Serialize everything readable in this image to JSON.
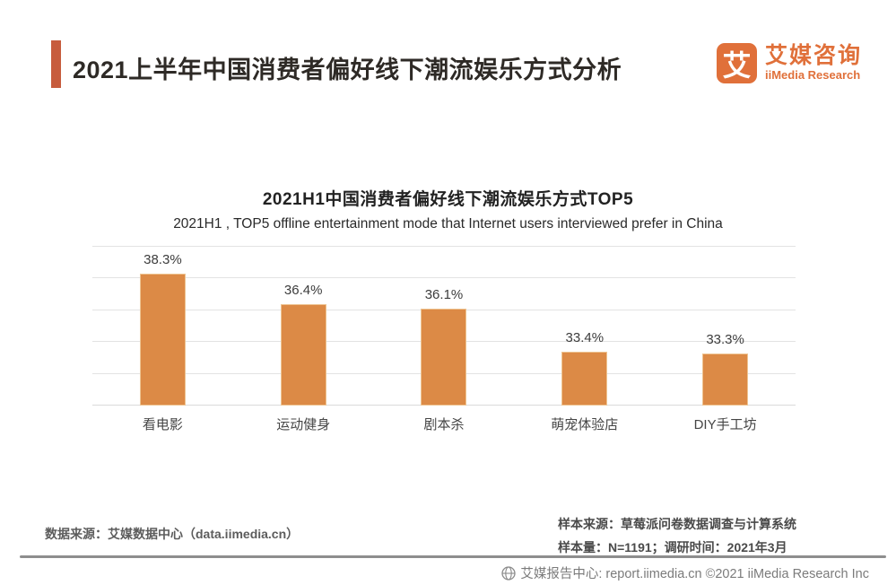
{
  "page": {
    "title": "2021上半年中国消费者偏好线下潮流娱乐方式分析"
  },
  "brand": {
    "logo_glyph": "艾",
    "name_cn": "艾媒咨询",
    "name_en": "iiMedia Research"
  },
  "chart_data": {
    "type": "bar",
    "title": "2021H1中国消费者偏好线下潮流娱乐方式TOP5",
    "subtitle": "2021H1 , TOP5 offline entertainment mode that Internet users interviewed prefer in China",
    "categories": [
      "看电影",
      "运动健身",
      "剧本杀",
      "萌宠体验店",
      "DIY手工坊"
    ],
    "values": [
      38.3,
      36.4,
      36.1,
      33.4,
      33.3
    ],
    "value_labels": [
      "38.3%",
      "36.4%",
      "36.1%",
      "33.4%",
      "33.3%"
    ],
    "unit": "%",
    "ylim": [
      30,
      40
    ],
    "y_gridline_count": 6,
    "grid": true,
    "legend_position": "none",
    "bar_color": "#dc8a46"
  },
  "footer": {
    "source_left": "数据来源：艾媒数据中心（data.iimedia.cn）",
    "sample_source": "样本来源：草莓派问卷数据调查与计算系统",
    "sample_info": "样本量：N=1191；调研时间：2021年3月",
    "bottom_bar": "艾媒报告中心: report.iimedia.cn  ©2021  iiMedia Research  Inc"
  },
  "colors": {
    "bar_fill": "#dc8a46",
    "bar_edge": "#eec491",
    "accent_bar": "#c75c3d",
    "brand_orange": "#e0703a",
    "gridline": "#e3e3e3",
    "rule_gray": "#8e8e8e"
  }
}
